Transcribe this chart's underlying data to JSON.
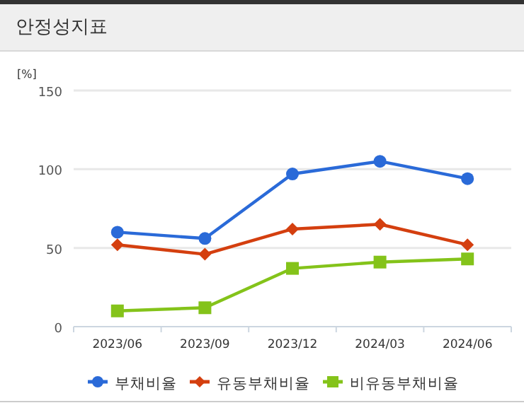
{
  "chart_data": {
    "type": "line",
    "title": "안정성지표",
    "ylabel": "[%]",
    "categories": [
      "2023/06",
      "2023/09",
      "2023/12",
      "2024/03",
      "2024/06"
    ],
    "ylim": [
      0,
      150
    ],
    "yticks": [
      0,
      50,
      100,
      150
    ],
    "grid": "y",
    "legend": "bottom",
    "series": [
      {
        "name": "부채비율",
        "color": "#2a6ad8",
        "marker": "circle",
        "values": [
          60,
          56,
          97,
          105,
          94
        ]
      },
      {
        "name": "유동부채비율",
        "color": "#d43f0f",
        "marker": "diamond",
        "values": [
          52,
          46,
          62,
          65,
          52
        ]
      },
      {
        "name": "비유동부채비율",
        "color": "#84c31a",
        "marker": "square",
        "values": [
          10,
          12,
          37,
          41,
          43
        ]
      }
    ]
  }
}
